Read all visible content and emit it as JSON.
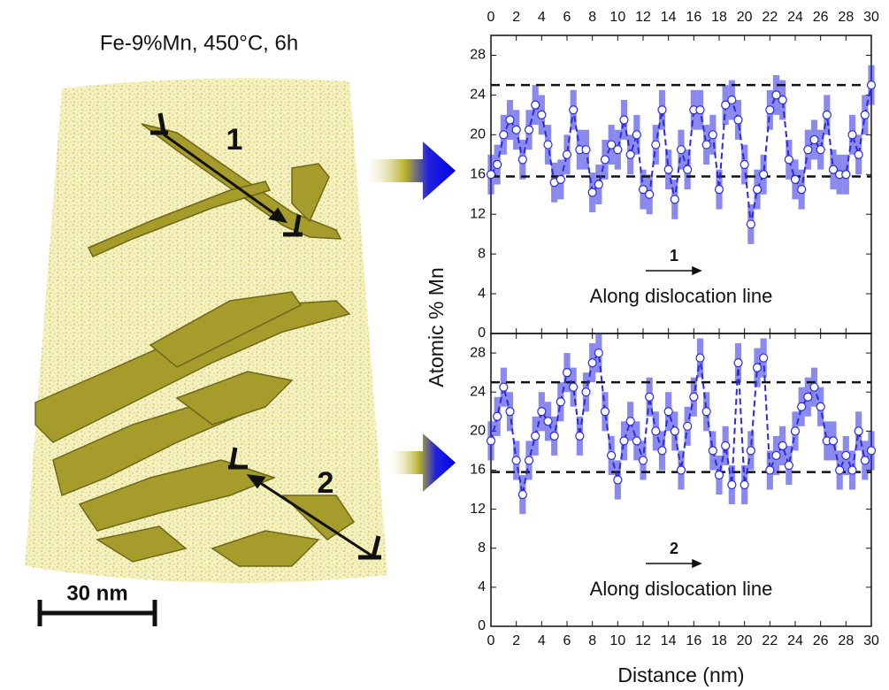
{
  "reconstruction": {
    "title": "Fe-9%Mn, 450°C, 6h",
    "labels": [
      "1",
      "2"
    ],
    "scale_bar": "30 nm"
  },
  "chart_data": [
    {
      "type": "line",
      "ylabel": "Atomic % Mn",
      "annotation": "Along dislocation line",
      "arrow_label": "1",
      "xlim": [
        0,
        30
      ],
      "ylim": [
        0,
        30
      ],
      "xticks": [
        0,
        2,
        4,
        6,
        8,
        10,
        12,
        14,
        16,
        18,
        20,
        22,
        24,
        26,
        28,
        30
      ],
      "yticks": [
        0,
        4,
        8,
        12,
        16,
        20,
        24,
        28
      ],
      "hlines": [
        25,
        15.8
      ],
      "x": [
        0,
        0.5,
        1,
        1.5,
        2,
        2.5,
        3,
        3.5,
        4,
        4.5,
        5,
        5.5,
        6,
        6.5,
        7,
        7.5,
        8,
        8.5,
        9,
        9.5,
        10,
        10.5,
        11,
        11.5,
        12,
        12.5,
        13,
        13.5,
        14,
        14.5,
        15,
        15.5,
        16,
        16.5,
        17,
        17.5,
        18,
        18.5,
        19,
        19.5,
        20,
        20.5,
        21,
        21.5,
        22,
        22.5,
        23,
        23.5,
        24,
        24.5,
        25,
        25.5,
        26,
        26.5,
        27,
        27.5,
        28,
        28.5,
        29,
        29.5,
        30
      ],
      "series": [
        {
          "color": "#2a2ae0",
          "values": [
            16,
            17,
            20,
            21.5,
            20.5,
            17.5,
            20.5,
            23,
            22,
            19,
            15.2,
            15.5,
            18,
            22.5,
            18.5,
            18.5,
            14.2,
            15,
            17.5,
            19,
            18.5,
            21.5,
            18,
            20,
            14.5,
            14,
            19,
            22.5,
            16.5,
            13.5,
            18.5,
            16.5,
            22.5,
            22.5,
            19,
            20,
            14.5,
            23,
            23.5,
            21.5,
            17,
            11,
            14.5,
            16,
            22.5,
            24,
            23.5,
            17.5,
            15.5,
            14.5,
            18.5,
            19.5,
            18.5,
            22,
            16.5,
            16,
            16,
            20,
            18,
            22,
            25
          ],
          "errors": [
            2,
            2,
            2,
            2,
            2,
            2,
            2,
            2,
            2,
            2,
            2,
            2,
            2,
            2,
            2,
            2,
            2,
            2,
            2,
            2,
            2,
            2,
            2,
            2,
            2,
            2,
            2,
            2,
            2,
            2,
            2,
            2,
            2,
            2,
            2,
            2,
            2,
            2,
            2,
            2,
            2,
            2,
            2,
            2,
            2,
            2,
            2,
            2,
            2,
            2,
            2,
            2,
            2,
            2,
            2,
            2,
            2,
            2,
            2,
            2,
            2
          ]
        }
      ]
    },
    {
      "type": "line",
      "xlabel": "Distance (nm)",
      "annotation": "Along dislocation line",
      "arrow_label": "2",
      "xlim": [
        0,
        30
      ],
      "ylim": [
        0,
        30
      ],
      "xticks": [
        0,
        2,
        4,
        6,
        8,
        10,
        12,
        14,
        16,
        18,
        20,
        22,
        24,
        26,
        28,
        30
      ],
      "yticks": [
        0,
        4,
        8,
        12,
        16,
        20,
        24,
        28
      ],
      "hlines": [
        25,
        15.8
      ],
      "x": [
        0,
        0.5,
        1,
        1.5,
        2,
        2.5,
        3,
        3.5,
        4,
        4.5,
        5,
        5.5,
        6,
        6.5,
        7,
        7.5,
        8,
        8.5,
        9,
        9.5,
        10,
        10.5,
        11,
        11.5,
        12,
        12.5,
        13,
        13.5,
        14,
        14.5,
        15,
        15.5,
        16,
        16.5,
        17,
        17.5,
        18,
        18.5,
        19,
        19.5,
        20,
        20.5,
        21,
        21.5,
        22,
        22.5,
        23,
        23.5,
        24,
        24.5,
        25,
        25.5,
        26,
        26.5,
        27,
        27.5,
        28,
        28.5,
        29,
        29.5,
        30
      ],
      "series": [
        {
          "color": "#2a2ae0",
          "values": [
            19,
            21.5,
            24.5,
            22,
            17,
            13.5,
            17,
            19.5,
            22,
            21,
            19.5,
            23,
            26,
            24.5,
            19.5,
            24,
            27,
            28,
            22,
            17.5,
            15,
            19,
            21,
            19,
            17,
            23.5,
            20,
            18,
            22,
            20,
            16,
            20.5,
            23.5,
            27.5,
            22,
            18,
            15.5,
            18.5,
            14.5,
            27,
            14.5,
            18,
            26.5,
            27.5,
            16,
            17.5,
            18.5,
            16.5,
            20,
            22.5,
            23.5,
            24.5,
            22.5,
            19,
            19,
            16,
            17.5,
            16,
            20,
            17,
            18
          ],
          "errors": [
            2,
            2,
            2,
            2,
            2,
            2,
            2,
            2,
            2,
            2,
            2,
            2,
            2,
            2,
            2,
            2,
            2,
            2,
            2,
            2,
            2,
            2,
            2,
            2,
            2,
            2,
            2,
            2,
            2,
            2,
            2,
            2,
            2,
            2,
            2,
            2,
            2,
            2,
            2,
            2,
            2,
            2,
            2,
            2,
            2,
            2,
            2,
            2,
            2,
            2,
            2,
            2,
            2,
            2,
            2,
            2,
            2,
            2,
            2,
            2,
            2
          ]
        }
      ]
    }
  ]
}
